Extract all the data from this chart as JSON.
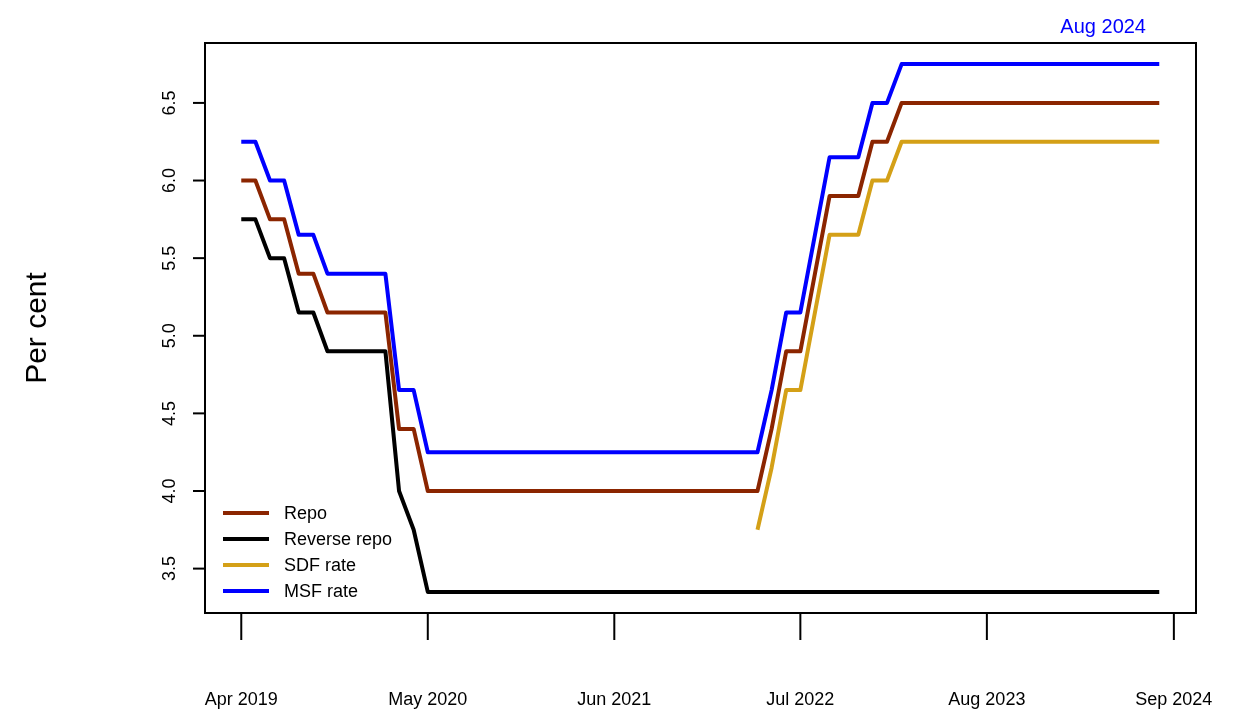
{
  "chart_data": {
    "type": "line",
    "ylabel": "Per cent",
    "annotations": [
      "Aug 2024"
    ],
    "x": [
      "2019-04",
      "2019-05",
      "2019-06",
      "2019-07",
      "2019-08",
      "2019-09",
      "2019-10",
      "2019-11",
      "2019-12",
      "2020-01",
      "2020-02",
      "2020-03",
      "2020-04",
      "2020-05",
      "2020-06",
      "2020-07",
      "2020-08",
      "2020-09",
      "2020-10",
      "2020-11",
      "2020-12",
      "2021-01",
      "2021-02",
      "2021-03",
      "2021-04",
      "2021-05",
      "2021-06",
      "2021-07",
      "2021-08",
      "2021-09",
      "2021-10",
      "2021-11",
      "2021-12",
      "2022-01",
      "2022-02",
      "2022-03",
      "2022-04",
      "2022-05",
      "2022-06",
      "2022-07",
      "2022-08",
      "2022-09",
      "2022-10",
      "2022-11",
      "2022-12",
      "2023-01",
      "2023-02",
      "2023-03",
      "2023-04",
      "2023-05",
      "2023-06",
      "2023-07",
      "2023-08",
      "2023-09",
      "2023-10",
      "2023-11",
      "2023-12",
      "2024-01",
      "2024-02",
      "2024-03",
      "2024-04",
      "2024-05",
      "2024-06",
      "2024-07",
      "2024-08"
    ],
    "series": [
      {
        "name": "Repo",
        "color": "#8b2500",
        "values": [
          6,
          6,
          5.75,
          5.75,
          5.4,
          5.4,
          5.15,
          5.15,
          5.15,
          5.15,
          5.15,
          4.4,
          4.4,
          4,
          4,
          4,
          4,
          4,
          4,
          4,
          4,
          4,
          4,
          4,
          4,
          4,
          4,
          4,
          4,
          4,
          4,
          4,
          4,
          4,
          4,
          4,
          4,
          4.4,
          4.9,
          4.9,
          5.4,
          5.9,
          5.9,
          5.9,
          6.25,
          6.25,
          6.5,
          6.5,
          6.5,
          6.5,
          6.5,
          6.5,
          6.5,
          6.5,
          6.5,
          6.5,
          6.5,
          6.5,
          6.5,
          6.5,
          6.5,
          6.5,
          6.5,
          6.5,
          6.5
        ]
      },
      {
        "name": "Reverse repo",
        "color": "#000000",
        "values": [
          5.75,
          5.75,
          5.5,
          5.5,
          5.15,
          5.15,
          4.9,
          4.9,
          4.9,
          4.9,
          4.9,
          4,
          3.75,
          3.35,
          3.35,
          3.35,
          3.35,
          3.35,
          3.35,
          3.35,
          3.35,
          3.35,
          3.35,
          3.35,
          3.35,
          3.35,
          3.35,
          3.35,
          3.35,
          3.35,
          3.35,
          3.35,
          3.35,
          3.35,
          3.35,
          3.35,
          3.35,
          3.35,
          3.35,
          3.35,
          3.35,
          3.35,
          3.35,
          3.35,
          3.35,
          3.35,
          3.35,
          3.35,
          3.35,
          3.35,
          3.35,
          3.35,
          3.35,
          3.35,
          3.35,
          3.35,
          3.35,
          3.35,
          3.35,
          3.35,
          3.35,
          3.35,
          3.35,
          3.35,
          3.35
        ]
      },
      {
        "name": "SDF rate",
        "color": "#d4a017",
        "x": [
          "2022-04",
          "2022-05",
          "2022-06",
          "2022-07",
          "2022-08",
          "2022-09",
          "2022-10",
          "2022-11",
          "2022-12",
          "2023-01",
          "2023-02",
          "2023-03",
          "2023-04",
          "2023-05",
          "2023-06",
          "2023-07",
          "2023-08",
          "2023-09",
          "2023-10",
          "2023-11",
          "2023-12",
          "2024-01",
          "2024-02",
          "2024-03",
          "2024-04",
          "2024-05",
          "2024-06",
          "2024-07",
          "2024-08"
        ],
        "values": [
          3.75,
          4.15,
          4.65,
          4.65,
          5.15,
          5.65,
          5.65,
          5.65,
          6,
          6,
          6.25,
          6.25,
          6.25,
          6.25,
          6.25,
          6.25,
          6.25,
          6.25,
          6.25,
          6.25,
          6.25,
          6.25,
          6.25,
          6.25,
          6.25,
          6.25,
          6.25,
          6.25,
          6.25
        ]
      },
      {
        "name": "MSF rate",
        "color": "#0000ff",
        "values": [
          6.25,
          6.25,
          6,
          6,
          5.65,
          5.65,
          5.4,
          5.4,
          5.4,
          5.4,
          5.4,
          4.65,
          4.65,
          4.25,
          4.25,
          4.25,
          4.25,
          4.25,
          4.25,
          4.25,
          4.25,
          4.25,
          4.25,
          4.25,
          4.25,
          4.25,
          4.25,
          4.25,
          4.25,
          4.25,
          4.25,
          4.25,
          4.25,
          4.25,
          4.25,
          4.25,
          4.25,
          4.65,
          5.15,
          5.15,
          5.65,
          6.15,
          6.15,
          6.15,
          6.5,
          6.5,
          6.75,
          6.75,
          6.75,
          6.75,
          6.75,
          6.75,
          6.75,
          6.75,
          6.75,
          6.75,
          6.75,
          6.75,
          6.75,
          6.75,
          6.75,
          6.75,
          6.75,
          6.75,
          6.75
        ]
      }
    ],
    "xlim": [
      "2019-01-14",
      "2024-10-18"
    ],
    "xticks": [
      {
        "value": "2019-04",
        "label": "Apr 2019"
      },
      {
        "value": "2020-05",
        "label": "May 2020"
      },
      {
        "value": "2021-06",
        "label": "Jun 2021"
      },
      {
        "value": "2022-07",
        "label": "Jul 2022"
      },
      {
        "value": "2023-08",
        "label": "Aug 2023"
      },
      {
        "value": "2024-09",
        "label": "Sep 2024"
      }
    ],
    "ylim": [
      3.214,
      6.886
    ],
    "yticks": [
      {
        "value": 3.5,
        "label": "3.5"
      },
      {
        "value": 4,
        "label": "4.0"
      },
      {
        "value": 4.5,
        "label": "4.5"
      },
      {
        "value": 5,
        "label": "5.0"
      },
      {
        "value": 5.5,
        "label": "5.5"
      },
      {
        "value": 6,
        "label": "6.0"
      },
      {
        "value": 6.5,
        "label": "6.5"
      }
    ],
    "legend": "bottom left",
    "grid": false,
    "marker": "none",
    "line_style": "solid"
  }
}
